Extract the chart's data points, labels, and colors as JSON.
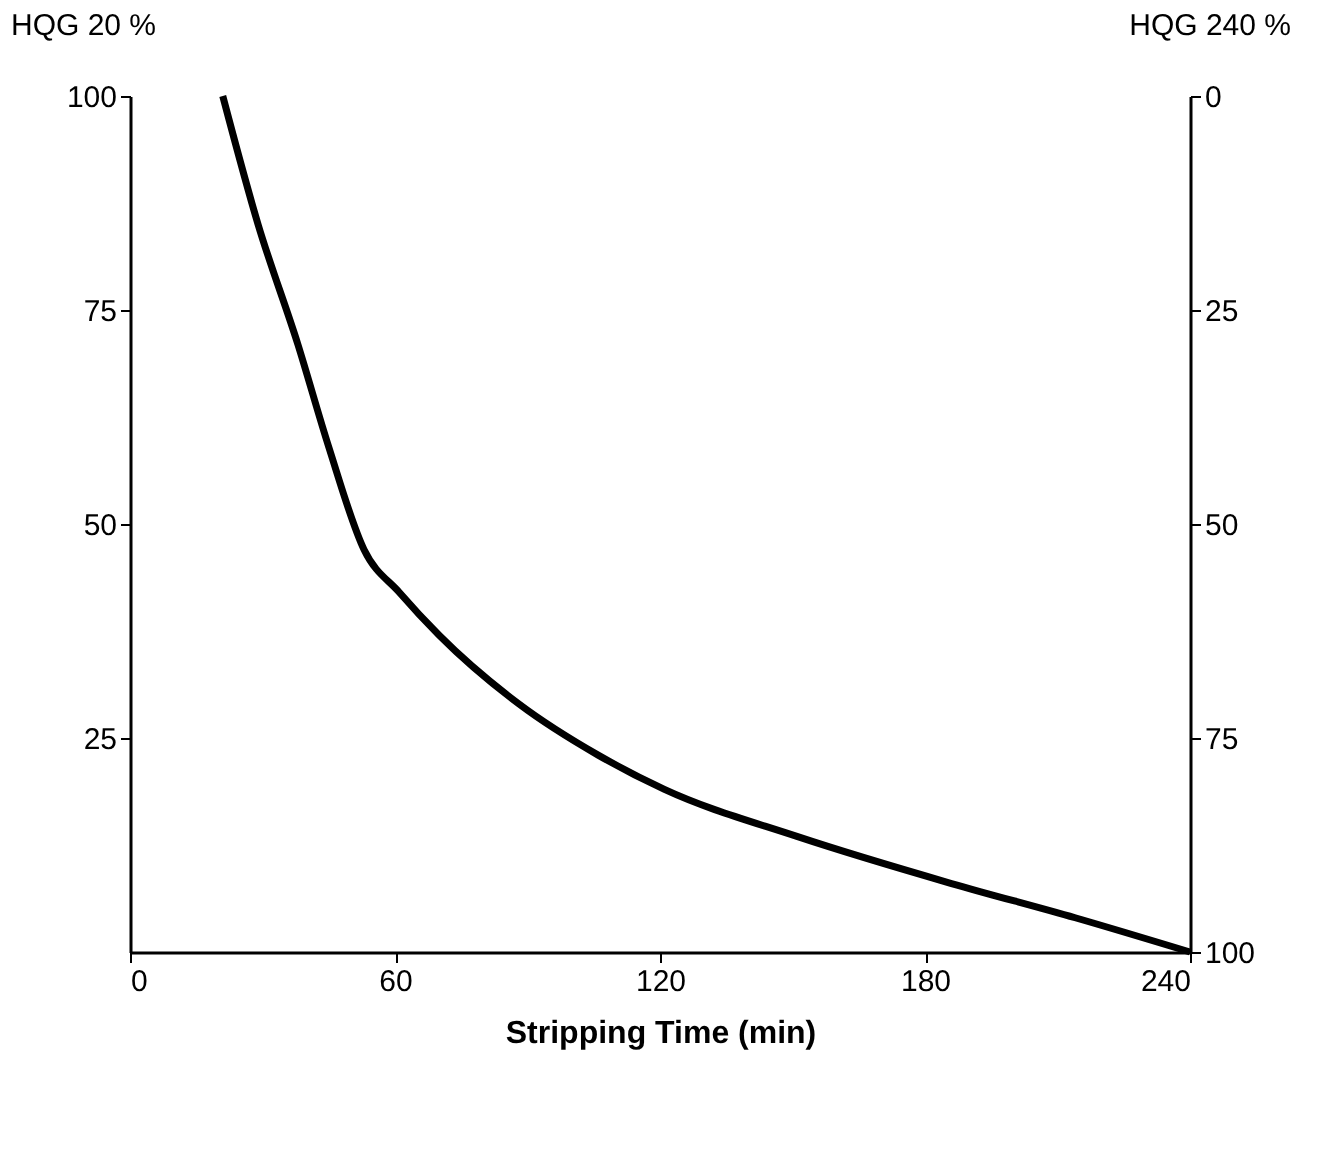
{
  "chart_data": {
    "type": "line",
    "xlabel": "Stripping Time (min)",
    "ylabel": "HQG 20 %",
    "y2label": "HQG 240 %",
    "xlim": [
      0,
      240
    ],
    "xticks": [
      0,
      60,
      120,
      180,
      240
    ],
    "ylim": [
      0,
      100
    ],
    "yticks": [
      25,
      50,
      75,
      100
    ],
    "y2lim": [
      100,
      0
    ],
    "y2ticks": [
      0,
      25,
      50,
      75,
      100
    ],
    "grid": false,
    "marker": "none",
    "line_style": "solid",
    "series": [
      {
        "color": "#000000",
        "x": [
          21,
          29,
          38,
          45,
          53,
          61,
          70,
          88,
          106,
          121,
          151,
          186,
          214,
          240
        ],
        "values": [
          100,
          85,
          71,
          59,
          47,
          42,
          37,
          29,
          23,
          19,
          13.5,
          8,
          4,
          0
        ]
      }
    ]
  }
}
